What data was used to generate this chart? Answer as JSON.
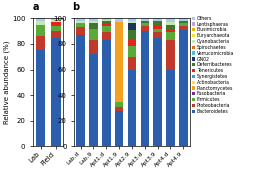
{
  "phyla_order": [
    "Bacteroidetes",
    "Proteobacteria",
    "Firmicutes",
    "Fusobacteria",
    "Planctomycetes",
    "Actinobacteria",
    "Synergistetes",
    "Tenericutes",
    "Deferribacteres",
    "GN02",
    "Verrucomicrobia",
    "Spirochaetes",
    "Cyanobacteria",
    "Euryarchaeota",
    "Elusimicrobia",
    "Lentisphaeras",
    "Others"
  ],
  "phyla_colors": {
    "Bacteroidetes": "#2b5eac",
    "Proteobacteria": "#c0392b",
    "Firmicutes": "#5aaa3a",
    "Fusobacteria": "#7030a0",
    "Planctomycetes": "#f4a020",
    "Actinobacteria": "#ffd966",
    "Synergistetes": "#4e92d0",
    "Tenericutes": "#e8231c",
    "Deferribacteres": "#3d7a30",
    "GN02": "#1a3660",
    "Verrucomicrobia": "#47c3d4",
    "Spirochaetes": "#e07020",
    "Cyanobacteria": "#c8e6b0",
    "Euryarchaeota": "#f0e040",
    "Elusimicrobia": "#f0b000",
    "Lentisphaeras": "#c0a0d8",
    "Others": "#aacce8"
  },
  "panel_a_cats": [
    "Lab",
    "Field"
  ],
  "panel_a": {
    "Lab": {
      "Bacteroidetes": 75,
      "Proteobacteria": 11,
      "Firmicutes": 9,
      "Cyanobacteria": 3,
      "Others": 2
    },
    "Field": {
      "Bacteroidetes": 85,
      "Proteobacteria": 5,
      "Firmicutes": 4,
      "Tenericutes": 3,
      "Cyanobacteria": 2,
      "Others": 1
    }
  },
  "panel_b_cats": [
    "Lab.d",
    "Lab.9",
    "Apt1.d",
    "Apt1.9",
    "Apt2.9",
    "Apt3.d",
    "Apt3.9",
    "Apt4.d",
    "Apt4.9"
  ],
  "panel_b": {
    "Lab.d": {
      "Bacteroidetes": 87,
      "Proteobacteria": 6,
      "Firmicutes": 3,
      "Cyanobacteria": 2,
      "Others": 2
    },
    "Lab.9": {
      "Bacteroidetes": 72,
      "Proteobacteria": 11,
      "Firmicutes": 9,
      "Deferribacteres": 4,
      "Cyanobacteria": 2,
      "Others": 2
    },
    "Apt1.d": {
      "Bacteroidetes": 83,
      "Proteobacteria": 6,
      "Firmicutes": 5,
      "Tenericutes": 2,
      "Deferribacteres": 2,
      "Cyanobacteria": 1,
      "Others": 1
    },
    "Apt1.9": {
      "Bacteroidetes": 28,
      "Proteobacteria": 3,
      "Firmicutes": 4,
      "Planctomycetes": 62,
      "Others": 3
    },
    "Apt2.9": {
      "Bacteroidetes": 60,
      "Proteobacteria": 10,
      "Firmicutes": 8,
      "Tenericutes": 5,
      "Deferribacteres": 8,
      "GN02": 5,
      "Cyanobacteria": 2,
      "Others": 2
    },
    "Apt3.d": {
      "Bacteroidetes": 90,
      "Proteobacteria": 4,
      "Firmicutes": 2,
      "Deferribacteres": 2,
      "Others": 2
    },
    "Apt3.9": {
      "Bacteroidetes": 85,
      "Proteobacteria": 4,
      "Firmicutes": 3,
      "Tenericutes": 3,
      "Deferribacteres": 3,
      "Others": 2
    },
    "Apt4.d": {
      "Bacteroidetes": 60,
      "Proteobacteria": 23,
      "Firmicutes": 6,
      "Tenericutes": 3,
      "Deferribacteres": 3,
      "Cyanobacteria": 2,
      "Others": 3
    },
    "Apt4.9": {
      "Bacteroidetes": 91,
      "Proteobacteria": 3,
      "Firmicutes": 2,
      "Deferribacteres": 2,
      "Others": 2
    }
  },
  "ylabel": "Relative abundance (%)",
  "panel_a_labels": [
    "Lab",
    "Field"
  ],
  "panel_b_labels": [
    "Lab.d",
    "Lab.9",
    "Apt1.d",
    "Apt1.9",
    "Apt2.9",
    "Apt3.d",
    "Apt3.9",
    "Apt4.d",
    "Apt4.9"
  ]
}
